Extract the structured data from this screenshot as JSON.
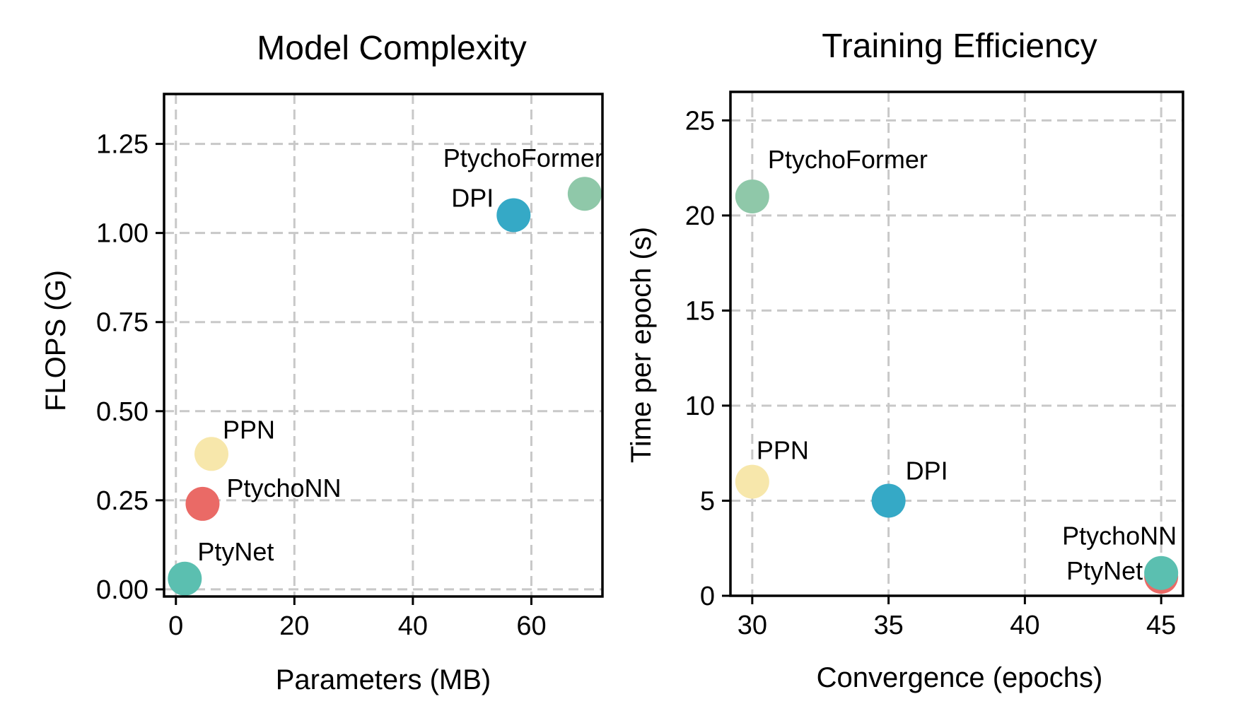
{
  "chart_data": [
    {
      "type": "scatter",
      "title": "Model Complexity",
      "xlabel": "Parameters (MB)",
      "ylabel": "FLOPS (G)",
      "xlim": [
        -2,
        72
      ],
      "ylim": [
        -0.02,
        1.39
      ],
      "xticks": [
        0,
        20,
        40,
        60
      ],
      "xtick_labels": [
        "0",
        "20",
        "40",
        "60"
      ],
      "yticks": [
        0,
        0.25,
        0.5,
        0.75,
        1.0,
        1.25
      ],
      "ytick_labels": [
        "0.00",
        "0.25",
        "0.50",
        "0.75",
        "1.00",
        "1.25"
      ],
      "grid": true,
      "points": [
        {
          "name": "PtyNet",
          "x": 1.5,
          "y": 0.03,
          "color": "#5bbfb0"
        },
        {
          "name": "PtychoNN",
          "x": 4.5,
          "y": 0.24,
          "color": "#ea6a66"
        },
        {
          "name": "PPN",
          "x": 6.0,
          "y": 0.38,
          "color": "#f7e7ab"
        },
        {
          "name": "DPI",
          "x": 57.0,
          "y": 1.05,
          "color": "#35a9c6"
        },
        {
          "name": "PtychoFormer",
          "x": 69.0,
          "y": 1.11,
          "color": "#8fc8a9"
        }
      ]
    },
    {
      "type": "scatter",
      "title": "Training Efficiency",
      "xlabel": "Convergence (epochs)",
      "ylabel": "Time per epoch (s)",
      "xlim": [
        29.2,
        45.8
      ],
      "ylim": [
        0,
        26.5
      ],
      "xticks": [
        30,
        35,
        40,
        45
      ],
      "xtick_labels": [
        "30",
        "35",
        "40",
        "45"
      ],
      "yticks": [
        0,
        5,
        10,
        15,
        20,
        25
      ],
      "ytick_labels": [
        "0",
        "5",
        "10",
        "15",
        "20",
        "25"
      ],
      "grid": true,
      "points": [
        {
          "name": "PtychoFormer",
          "x": 30,
          "y": 21.0,
          "color": "#8fc8a9"
        },
        {
          "name": "PPN",
          "x": 30,
          "y": 6.0,
          "color": "#f7e7ab"
        },
        {
          "name": "DPI",
          "x": 35,
          "y": 5.0,
          "color": "#35a9c6"
        },
        {
          "name": "PtyNet",
          "x": 45,
          "y": 1.0,
          "color": "#ea6a66"
        },
        {
          "name": "PtychoNN",
          "x": 45,
          "y": 1.2,
          "color": "#5bbfb0"
        }
      ]
    }
  ]
}
